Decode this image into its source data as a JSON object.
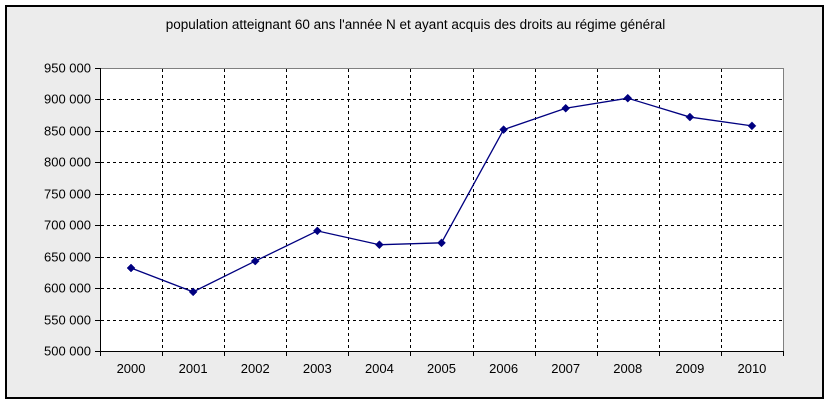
{
  "chart_data": {
    "type": "line",
    "title": "population atteignant 60 ans l'année N et ayant acquis des droits au régime général",
    "categories": [
      "2000",
      "2001",
      "2002",
      "2003",
      "2004",
      "2005",
      "2006",
      "2007",
      "2008",
      "2009",
      "2010"
    ],
    "series": [
      {
        "name": "population atteignant 60 ans",
        "values": [
          632000,
          594000,
          643000,
          691000,
          669000,
          672000,
          852000,
          886000,
          902000,
          872000,
          858000
        ]
      }
    ],
    "xlabel": "",
    "ylabel": "",
    "ylim": [
      500000,
      950000
    ],
    "ytick_step": 50000,
    "ytick_labels": [
      "500 000",
      "550 000",
      "600 000",
      "650 000",
      "700 000",
      "750 000",
      "800 000",
      "850 000",
      "900 000",
      "950 000"
    ],
    "legend": "none",
    "grid": "dashed-horizontal-and-vertical",
    "marker": "diamond",
    "colors": {
      "line": "#000080",
      "marker": "#000080",
      "chart_background": "#ececec",
      "plot_background": "#ffffff",
      "plot_border": "#808080",
      "axis": "#000000",
      "gridline": "#000000",
      "outer_border": "#000000",
      "text": "#000000"
    }
  }
}
